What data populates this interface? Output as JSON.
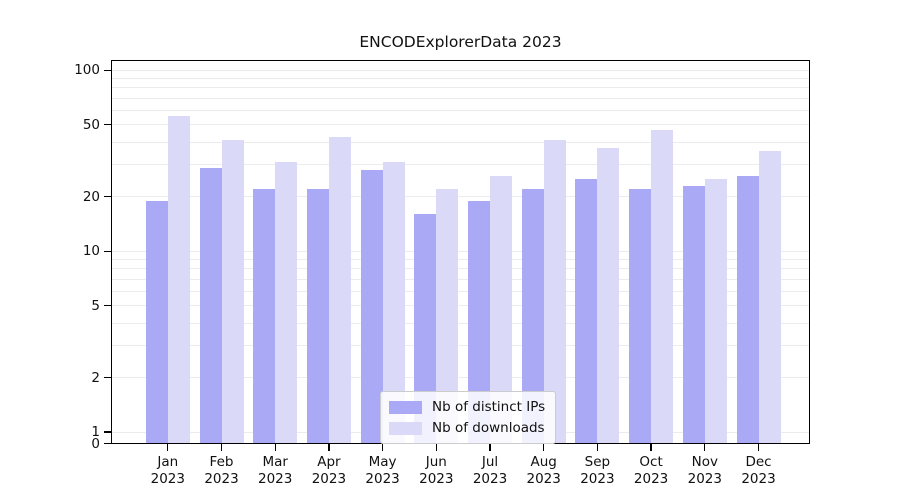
{
  "title": "ENCODExplorerData 2023",
  "chart_data": {
    "type": "bar",
    "title": "ENCODExplorerData 2023",
    "yscale": "symlog",
    "ylim": [
      0,
      100
    ],
    "grid": true,
    "legend_position": "lower center",
    "categories": [
      {
        "month": "Jan",
        "year": "2023"
      },
      {
        "month": "Feb",
        "year": "2023"
      },
      {
        "month": "Mar",
        "year": "2023"
      },
      {
        "month": "Apr",
        "year": "2023"
      },
      {
        "month": "May",
        "year": "2023"
      },
      {
        "month": "Jun",
        "year": "2023"
      },
      {
        "month": "Jul",
        "year": "2023"
      },
      {
        "month": "Aug",
        "year": "2023"
      },
      {
        "month": "Sep",
        "year": "2023"
      },
      {
        "month": "Oct",
        "year": "2023"
      },
      {
        "month": "Nov",
        "year": "2023"
      },
      {
        "month": "Dec",
        "year": "2023"
      }
    ],
    "series": [
      {
        "name": "Nb of distinct IPs",
        "color": "#a9a9f6",
        "values": [
          19,
          29,
          22,
          22,
          28,
          16,
          19,
          22,
          25,
          22,
          23,
          26
        ]
      },
      {
        "name": "Nb of downloads",
        "color": "#dadaf8",
        "values": [
          56,
          41,
          31,
          43,
          31,
          22,
          26,
          41,
          37,
          47,
          25,
          36
        ]
      }
    ],
    "yticks": [
      100,
      50,
      20,
      10,
      5,
      2,
      1,
      0
    ],
    "gridline_values": [
      1,
      2,
      3,
      4,
      5,
      6,
      7,
      8,
      9,
      10,
      20,
      30,
      40,
      50,
      60,
      70,
      80,
      90,
      100
    ]
  }
}
